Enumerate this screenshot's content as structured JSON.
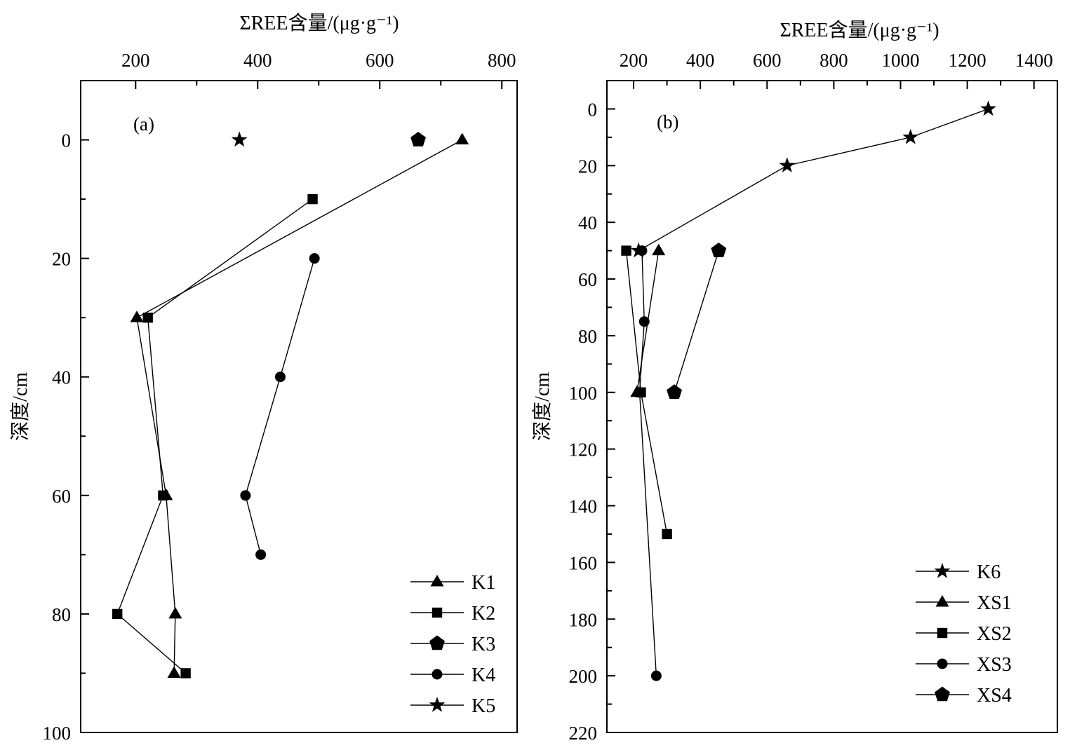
{
  "figure": {
    "chart_data": [
      {
        "type": "line",
        "panel_label": "(a)",
        "xlabel": "ΣREE含量/(μg·g⁻¹)",
        "ylabel": "深度/cm",
        "xlim": [
          110,
          825
        ],
        "ylim": [
          -10,
          100
        ],
        "x_ticks": [
          200,
          400,
          600,
          800
        ],
        "y_ticks": [
          0,
          20,
          40,
          60,
          80,
          100
        ],
        "x_minor_step": 100,
        "y_minor_step": 10,
        "y_inverted": true,
        "x_axis_position": "top",
        "grid": false,
        "legend_position": "bottom-right",
        "series": [
          {
            "name": "K1",
            "marker": "triangle",
            "x": [
              735,
              202,
              250,
              265,
              263
            ],
            "y": [
              0,
              30,
              60,
              80,
              90
            ]
          },
          {
            "name": "K2",
            "marker": "square",
            "x": [
              490,
              220,
              245,
              170,
              282
            ],
            "y": [
              10,
              30,
              60,
              80,
              90
            ]
          },
          {
            "name": "K3",
            "marker": "pentagon",
            "x": [
              663
            ],
            "y": [
              0
            ]
          },
          {
            "name": "K4",
            "marker": "circle",
            "x": [
              493,
              437,
              380,
              405
            ],
            "y": [
              20,
              40,
              60,
              70
            ]
          },
          {
            "name": "K5",
            "marker": "star",
            "x": [
              370
            ],
            "y": [
              0
            ]
          }
        ]
      },
      {
        "type": "line",
        "panel_label": "(b)",
        "xlabel": "ΣREE含量/(μg·g⁻¹)",
        "ylabel": "深度/cm",
        "xlim": [
          120,
          1470
        ],
        "ylim": [
          -10,
          220
        ],
        "x_ticks": [
          200,
          400,
          600,
          800,
          1000,
          1200,
          1400
        ],
        "y_ticks": [
          0,
          20,
          40,
          60,
          80,
          100,
          120,
          140,
          160,
          180,
          200,
          220
        ],
        "x_minor_step": 100,
        "y_minor_step": 10,
        "y_inverted": true,
        "x_axis_position": "top",
        "grid": false,
        "legend_position": "bottom-right",
        "series": [
          {
            "name": "K6",
            "marker": "star",
            "x": [
              1263,
              1030,
              660,
              215
            ],
            "y": [
              0,
              10,
              20,
              50
            ]
          },
          {
            "name": "XS1",
            "marker": "triangle",
            "x": [
              275,
              210
            ],
            "y": [
              50,
              100
            ]
          },
          {
            "name": "XS2",
            "marker": "square",
            "x": [
              178,
              222,
              300
            ],
            "y": [
              50,
              100,
              150
            ]
          },
          {
            "name": "XS3",
            "marker": "circle",
            "x": [
              225,
              232,
              218,
              268
            ],
            "y": [
              50,
              75,
              100,
              200
            ]
          },
          {
            "name": "XS4",
            "marker": "pentagon",
            "x": [
              455,
              322
            ],
            "y": [
              50,
              100
            ]
          }
        ]
      }
    ]
  }
}
